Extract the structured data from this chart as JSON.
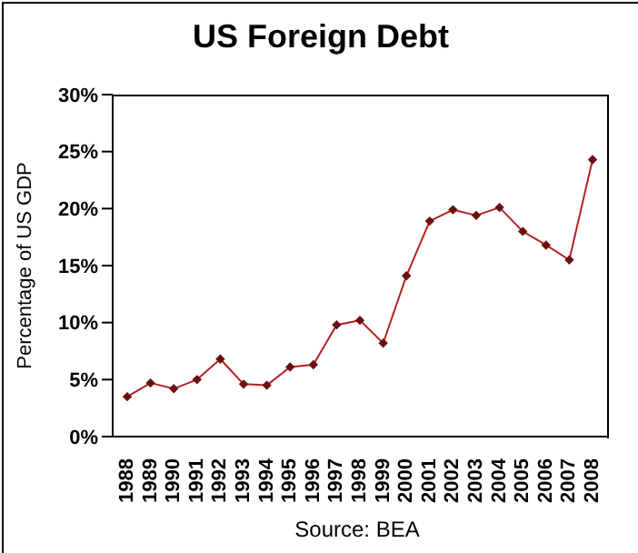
{
  "chart_data": {
    "type": "line",
    "title": "US Foreign Debt",
    "ylabel": "Percentage of US GDP",
    "annotations": [
      "Source: BEA"
    ],
    "categories": [
      "1988",
      "1989",
      "1990",
      "1991",
      "1992",
      "1993",
      "1994",
      "1995",
      "1996",
      "1997",
      "1998",
      "1999",
      "2000",
      "2001",
      "2002",
      "2003",
      "2004",
      "2005",
      "2006",
      "2007",
      "2008"
    ],
    "series": [
      {
        "color": "#b22222",
        "values": [
          3.5,
          4.7,
          4.2,
          5.0,
          6.8,
          4.6,
          4.5,
          6.1,
          6.3,
          9.8,
          10.2,
          8.2,
          14.1,
          18.9,
          19.9,
          19.4,
          20.1,
          18.0,
          16.8,
          15.5,
          24.3
        ]
      }
    ],
    "ylim": [
      0,
      30
    ],
    "yticks": [
      {
        "value": 0,
        "label": "0%"
      },
      {
        "value": 5,
        "label": "5%"
      },
      {
        "value": 10,
        "label": "10%"
      },
      {
        "value": 15,
        "label": "15%"
      },
      {
        "value": 20,
        "label": "20%"
      },
      {
        "value": 25,
        "label": "25%"
      },
      {
        "value": 30,
        "label": "30%"
      }
    ],
    "grid": false,
    "legend": false,
    "marker": "diamond",
    "line_style": "solid"
  }
}
